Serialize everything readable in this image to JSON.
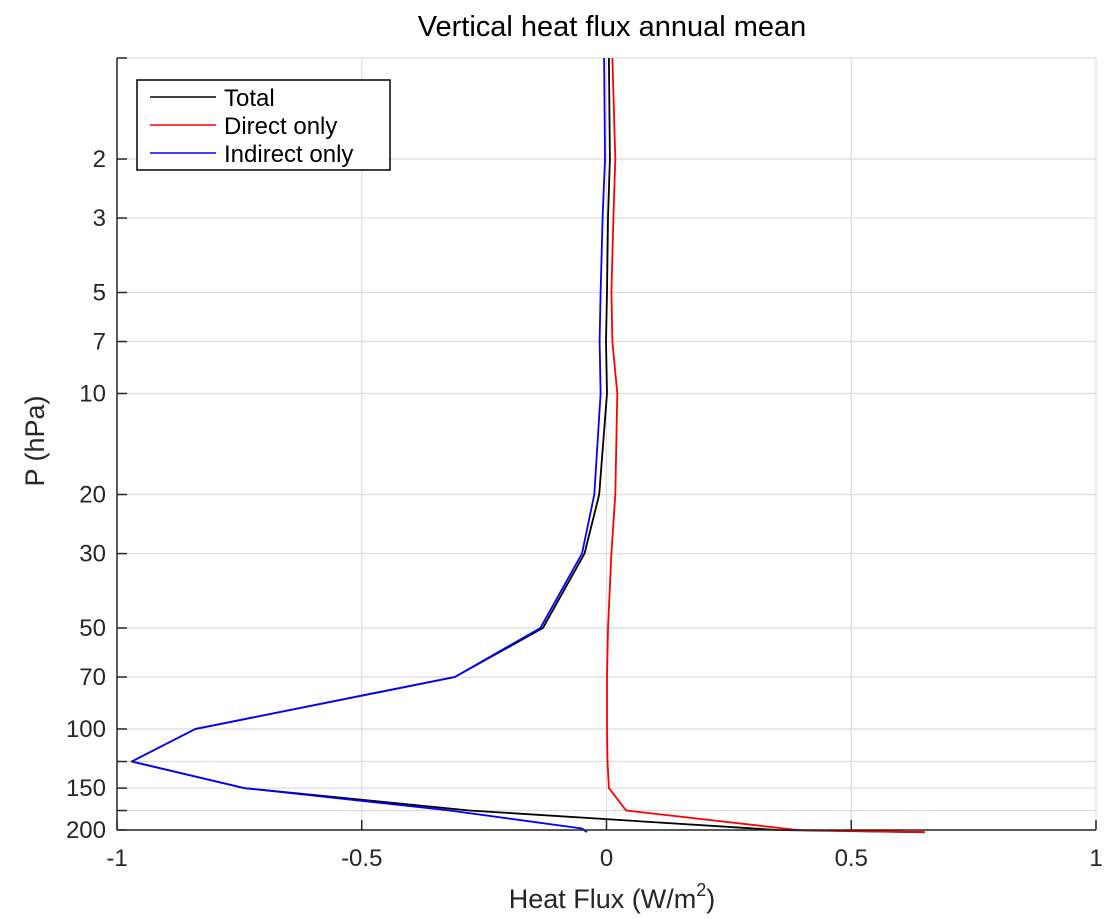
{
  "chart_data": {
    "type": "line",
    "title": "Vertical heat flux annual mean",
    "xlabel": "Heat Flux (W/m",
    "xlabel_sup": "2",
    "xlabel_suffix": ")",
    "ylabel": "P (hPa)",
    "xlim": [
      -1,
      1
    ],
    "ylim": [
      1,
      200
    ],
    "y_scale": "log",
    "y_reversed": true,
    "grid": true,
    "legend_position": "top-left",
    "x_ticks": [
      -1,
      -0.5,
      0,
      0.5,
      1
    ],
    "x_tick_labels": [
      "-1",
      "-0.5",
      "0",
      "0.5",
      "1"
    ],
    "y_ticks": [
      2,
      3,
      5,
      7,
      10,
      20,
      30,
      50,
      70,
      100,
      150,
      200
    ],
    "y_tick_labels": [
      "2",
      "3",
      "5",
      "7",
      "10",
      "20",
      "30",
      "50",
      "70",
      "100",
      "150",
      "200"
    ],
    "y_grid_levels": [
      1,
      2,
      3,
      5,
      7,
      10,
      20,
      30,
      50,
      70,
      100,
      125,
      150,
      175,
      200
    ],
    "series": [
      {
        "name": "Total",
        "color": "#000000",
        "points": [
          [
            0.005,
            1
          ],
          [
            0.007,
            2
          ],
          [
            0.003,
            3
          ],
          [
            0.001,
            5
          ],
          [
            -0.001,
            7
          ],
          [
            0.001,
            10
          ],
          [
            -0.015,
            20
          ],
          [
            -0.045,
            30
          ],
          [
            -0.13,
            50
          ],
          [
            -0.31,
            70
          ],
          [
            -0.84,
            100
          ],
          [
            -0.97,
            125
          ],
          [
            -0.74,
            150
          ],
          [
            -0.28,
            175
          ],
          [
            0.35,
            200
          ],
          [
            0.65,
            203
          ]
        ]
      },
      {
        "name": "Direct only",
        "color": "#ff0000",
        "points": [
          [
            0.012,
            1
          ],
          [
            0.018,
            2
          ],
          [
            0.014,
            3
          ],
          [
            0.01,
            5
          ],
          [
            0.012,
            7
          ],
          [
            0.022,
            10
          ],
          [
            0.018,
            20
          ],
          [
            0.01,
            30
          ],
          [
            0.003,
            50
          ],
          [
            0.001,
            70
          ],
          [
            0.001,
            100
          ],
          [
            0.002,
            125
          ],
          [
            0.005,
            150
          ],
          [
            0.04,
            175
          ],
          [
            0.39,
            200
          ],
          [
            0.65,
            203
          ]
        ]
      },
      {
        "name": "Indirect only",
        "color": "#0000ff",
        "points": [
          [
            -0.005,
            1
          ],
          [
            -0.003,
            2
          ],
          [
            -0.008,
            3
          ],
          [
            -0.012,
            5
          ],
          [
            -0.014,
            7
          ],
          [
            -0.012,
            10
          ],
          [
            -0.025,
            20
          ],
          [
            -0.05,
            30
          ],
          [
            -0.135,
            50
          ],
          [
            -0.31,
            70
          ],
          [
            -0.84,
            100
          ],
          [
            -0.97,
            125
          ],
          [
            -0.74,
            150
          ],
          [
            -0.32,
            175
          ],
          [
            -0.05,
            198
          ],
          [
            -0.04,
            203
          ]
        ]
      }
    ]
  }
}
